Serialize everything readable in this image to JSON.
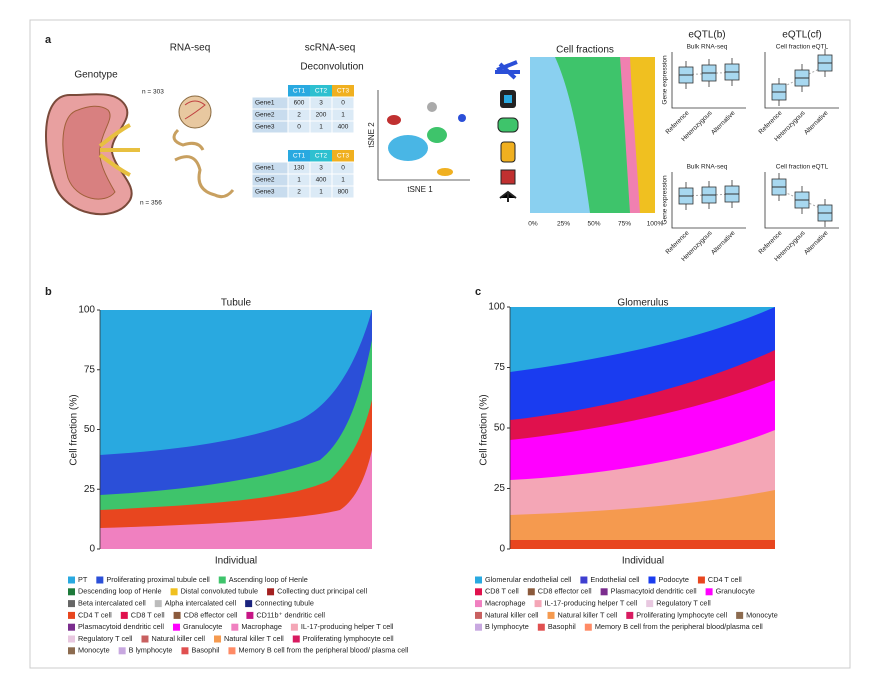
{
  "panel_a": {
    "label": "a",
    "genotype": "Genotype",
    "rna_seq": "RNA-seq",
    "scrna_seq": "scRNA-seq",
    "deconvolution": "Deconvolution",
    "n1": "n = 303",
    "n2": "n = 356",
    "table1": {
      "header": [
        "CT1",
        "CT2",
        "CT3"
      ],
      "rows": [
        [
          "Gene1",
          "600",
          "3",
          "0"
        ],
        [
          "Gene2",
          "2",
          "200",
          "1"
        ],
        [
          "Gene3",
          "0",
          "1",
          "400"
        ]
      ]
    },
    "table2": {
      "header": [
        "CT1",
        "CT2",
        "CT3"
      ],
      "rows": [
        [
          "Gene1",
          "130",
          "3",
          "0"
        ],
        [
          "Gene2",
          "1",
          "400",
          "1"
        ],
        [
          "Gene3",
          "2",
          "1",
          "800"
        ]
      ]
    },
    "tsne_x": "tSNE 1",
    "tsne_y": "tSNE 2",
    "cell_fractions": {
      "title": "Cell fractions",
      "ticks": [
        "0%",
        "25%",
        "50%",
        "75%",
        "100%"
      ]
    },
    "eqtl_b": {
      "title": "eQTL(b)",
      "top": "Bulk RNA-seq",
      "bottom": "Bulk RNA-seq"
    },
    "eqtl_cf": {
      "title": "eQTL(cf)",
      "top": "Cell fraction eQTL",
      "bottom": "Cell fraction eQTL"
    },
    "y_label": "Gene expression",
    "genotypes": [
      "Reference",
      "Heterozygous",
      "Alternative"
    ]
  },
  "panel_b": {
    "label": "b",
    "title": "Tubule",
    "y_label": "Cell fraction (%)",
    "x_label": "Individual",
    "yticks": [
      "0",
      "25",
      "50",
      "75",
      "100"
    ],
    "legend": [
      [
        {
          "name": "PT",
          "color": "#29a9e0"
        },
        {
          "name": "Proliferating proximal tubule cell",
          "color": "#2b4fd8"
        },
        {
          "name": "Ascending loop of Henle",
          "color": "#3ec46b"
        }
      ],
      [
        {
          "name": "Descending loop of Henle",
          "color": "#1d7a3a"
        },
        {
          "name": "Distal convoluted tubule",
          "color": "#f0c020"
        },
        {
          "name": "Collecting duct principal cell",
          "color": "#a32020"
        }
      ],
      [
        {
          "name": "Beta intercalated cell",
          "color": "#666666"
        },
        {
          "name": "Alpha intercalated cell",
          "color": "#bbbbbb"
        },
        {
          "name": "Connecting tubule",
          "color": "#1a237e"
        }
      ],
      [
        {
          "name": "CD4 T cell",
          "color": "#e8461f"
        },
        {
          "name": "CD8 T cell",
          "color": "#e0114d"
        },
        {
          "name": "CD8 effector cell",
          "color": "#8b5a3c"
        },
        {
          "name": "CD11b⁺ dendritic cell",
          "color": "#c71585"
        }
      ],
      [
        {
          "name": "Plasmacytoid dendritic cell",
          "color": "#7b2d8e"
        },
        {
          "name": "Granulocyte",
          "color": "#ff00ff"
        },
        {
          "name": "Macrophage",
          "color": "#f080c0"
        },
        {
          "name": "IL-17-producing helper T cell",
          "color": "#f4a6b6"
        }
      ],
      [
        {
          "name": "Regulatory T cell",
          "color": "#e8c8e0"
        },
        {
          "name": "Natural killer cell",
          "color": "#c86060"
        },
        {
          "name": "Natural killer T cell",
          "color": "#f59a4f"
        },
        {
          "name": "Proliferating lymphocyte cell",
          "color": "#d81b60"
        }
      ],
      [
        {
          "name": "Monocyte",
          "color": "#8c6b4f"
        },
        {
          "name": "B lymphocyte",
          "color": "#c8a8e0"
        },
        {
          "name": "Basophil",
          "color": "#e05050"
        },
        {
          "name": "Memory B cell from the peripheral blood/ plasma cell",
          "color": "#ff8a65"
        }
      ]
    ]
  },
  "panel_c": {
    "label": "c",
    "title": "Glomerulus",
    "y_label": "Cell fraction (%)",
    "x_label": "Individual",
    "yticks": [
      "0",
      "25",
      "50",
      "75",
      "100"
    ],
    "legend": [
      [
        {
          "name": "Glomerular endothelial cell",
          "color": "#29a9e0"
        },
        {
          "name": "Endothelial cell",
          "color": "#3f3fd0"
        },
        {
          "name": "Podocyte",
          "color": "#1a3cf0"
        },
        {
          "name": "CD4 T cell",
          "color": "#e8461f"
        }
      ],
      [
        {
          "name": "CD8 T cell",
          "color": "#e0114d"
        },
        {
          "name": "CD8 effector cell",
          "color": "#8b5a3c"
        },
        {
          "name": "Plasmacytoid dendritic cell",
          "color": "#7b2d8e"
        },
        {
          "name": "Granulocyte",
          "color": "#ff00ff"
        }
      ],
      [
        {
          "name": "Macrophage",
          "color": "#f080c0"
        },
        {
          "name": "IL-17-producing helper T cell",
          "color": "#f4a6b6"
        },
        {
          "name": "Regulatory T cell",
          "color": "#e8c8e0"
        }
      ],
      [
        {
          "name": "Natural killer cell",
          "color": "#c86060"
        },
        {
          "name": "Natural killer T cell",
          "color": "#f59a4f"
        },
        {
          "name": "Proliferating lymphocyte cell",
          "color": "#d81b60"
        },
        {
          "name": "Monocyte",
          "color": "#8c6b4f"
        }
      ],
      [
        {
          "name": "B lymphocyte",
          "color": "#c8a8e0"
        },
        {
          "name": "Basophil",
          "color": "#e05050"
        },
        {
          "name": "Memory B cell from the peripheral blood/plasma cell",
          "color": "#ff8a65"
        }
      ]
    ]
  }
}
